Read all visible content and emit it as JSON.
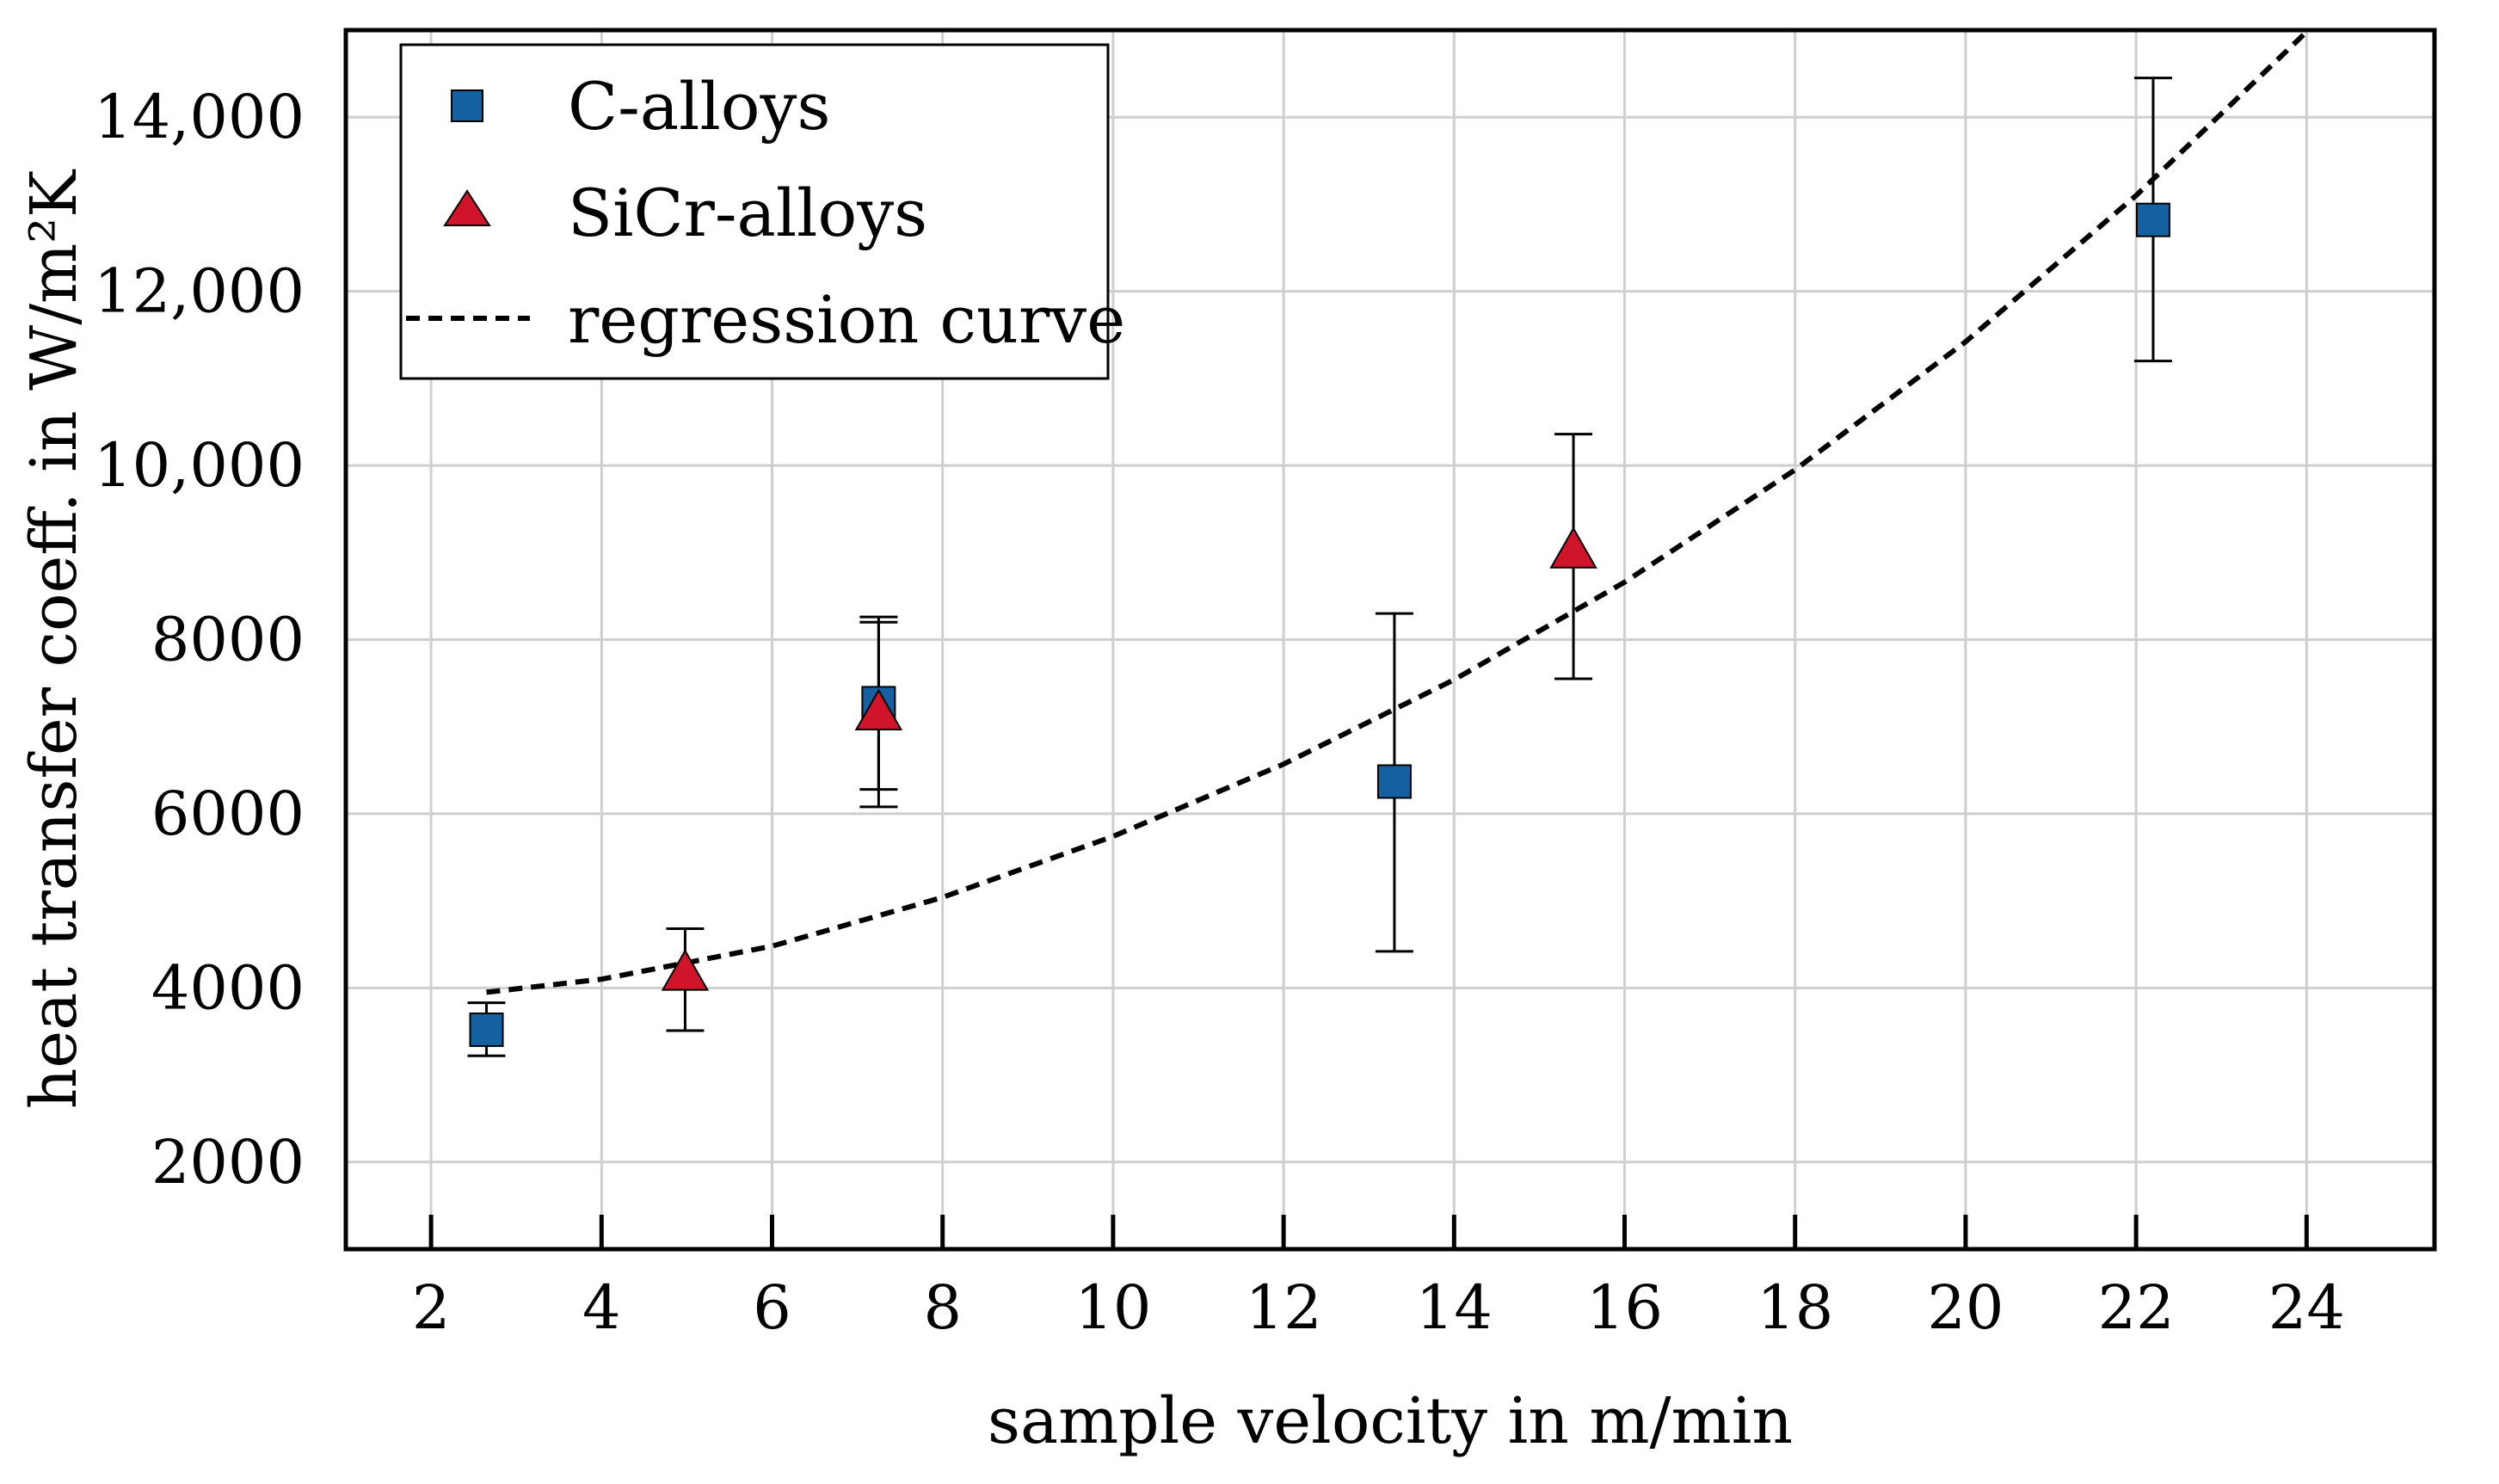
{
  "chart_data": {
    "type": "scatter",
    "title": "",
    "xlabel": "sample velocity in m/min",
    "ylabel": "heat transfer coeff. in W/m²K",
    "xlim": [
      1,
      25.5
    ],
    "ylim": [
      1000,
      15000
    ],
    "grid": true,
    "legend_position": "top-left",
    "x_ticks": [
      2,
      4,
      6,
      8,
      10,
      12,
      14,
      16,
      18,
      20,
      22,
      24
    ],
    "x_tick_labels": [
      "2",
      "4",
      "6",
      "8",
      "10",
      "12",
      "14",
      "16",
      "18",
      "20",
      "22",
      "24"
    ],
    "y_ticks": [
      2000,
      4000,
      6000,
      8000,
      10000,
      12000,
      14000
    ],
    "y_tick_labels": [
      "2000",
      "4000",
      "6000",
      "8000",
      "10,000",
      "12,000",
      "14,000"
    ],
    "series": [
      {
        "name": "C-alloys",
        "marker": "square",
        "color": "#1460a0",
        "points": [
          {
            "x": 2.65,
            "y": 3520,
            "err_low": 3220,
            "err_high": 3830
          },
          {
            "x": 7.25,
            "y": 7270,
            "err_low": 6280,
            "err_high": 8260
          },
          {
            "x": 13.3,
            "y": 6370,
            "err_low": 4420,
            "err_high": 8300
          },
          {
            "x": 22.2,
            "y": 12820,
            "err_low": 11200,
            "err_high": 14450
          }
        ]
      },
      {
        "name": "SiCr-alloys",
        "marker": "triangle",
        "color": "#d0142a",
        "points": [
          {
            "x": 4.98,
            "y": 4170,
            "err_low": 3510,
            "err_high": 4680
          },
          {
            "x": 7.25,
            "y": 7160,
            "err_low": 6080,
            "err_high": 8200
          },
          {
            "x": 15.4,
            "y": 9020,
            "err_low": 7550,
            "err_high": 10360
          }
        ]
      },
      {
        "name": "regression curve",
        "type": "line",
        "style": "dashed",
        "color": "#000000",
        "x": [
          2.65,
          4,
          6,
          8,
          10,
          12,
          14,
          16,
          18,
          20,
          22,
          24
        ],
        "y": [
          3950,
          4100,
          4480,
          5040,
          5740,
          6570,
          7540,
          8660,
          9950,
          11420,
          13100,
          14980
        ]
      }
    ]
  }
}
